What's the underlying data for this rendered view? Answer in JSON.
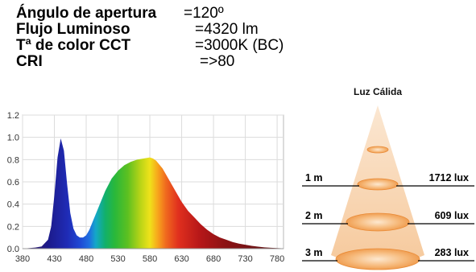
{
  "specs": [
    {
      "label": "Ángulo de apertura",
      "value": "=120º"
    },
    {
      "label": "Flujo Luminoso",
      "value": "=4320 lm"
    },
    {
      "label": "Tª de color  CCT",
      "value": "=3000K  (BC)"
    },
    {
      "label": "CRI",
      "value": "=>80"
    }
  ],
  "chart_data": [
    {
      "type": "area",
      "title": "",
      "xlabel": "",
      "ylabel": "",
      "xlim": [
        380,
        790
      ],
      "ylim": [
        0,
        1.2
      ],
      "x_ticks": [
        380,
        430,
        480,
        530,
        580,
        630,
        680,
        730,
        780
      ],
      "y_ticks": [
        "0.0",
        "0.2",
        "0.4",
        "0.6",
        "0.8",
        "1.0",
        "1.2"
      ],
      "grid": true,
      "fill": "visible-spectrum gradient",
      "series": [
        {
          "x": [
            380,
            400,
            410,
            420,
            425,
            430,
            435,
            440,
            445,
            450,
            455,
            460,
            465,
            470,
            475,
            480,
            485,
            490,
            500,
            510,
            520,
            530,
            540,
            550,
            560,
            570,
            580,
            585,
            590,
            600,
            610,
            620,
            630,
            640,
            650,
            660,
            670,
            680,
            690,
            700,
            710,
            720,
            730,
            740,
            750,
            760,
            770,
            780,
            790
          ],
          "y": [
            0.0,
            0.01,
            0.02,
            0.08,
            0.2,
            0.48,
            0.82,
            0.99,
            0.88,
            0.58,
            0.32,
            0.18,
            0.12,
            0.1,
            0.1,
            0.12,
            0.17,
            0.24,
            0.38,
            0.52,
            0.63,
            0.7,
            0.75,
            0.78,
            0.8,
            0.81,
            0.82,
            0.81,
            0.79,
            0.72,
            0.62,
            0.52,
            0.42,
            0.34,
            0.28,
            0.22,
            0.17,
            0.13,
            0.1,
            0.08,
            0.06,
            0.045,
            0.035,
            0.025,
            0.018,
            0.012,
            0.008,
            0.005,
            0.003
          ]
        }
      ]
    },
    {
      "type": "diagram",
      "title": "Luz Cálida",
      "rows": [
        {
          "distance": "1 m",
          "lux": "1712 lux"
        },
        {
          "distance": "2 m",
          "lux": "609 lux"
        },
        {
          "distance": "3 m",
          "lux": "283 lux"
        }
      ]
    }
  ]
}
